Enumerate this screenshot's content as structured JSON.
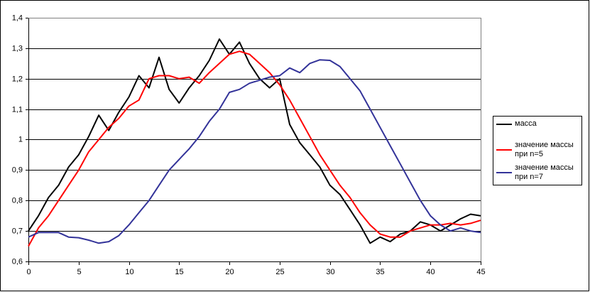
{
  "chart_data": {
    "type": "line",
    "x": [
      0,
      1,
      2,
      3,
      4,
      5,
      6,
      7,
      8,
      9,
      10,
      11,
      12,
      13,
      14,
      15,
      16,
      17,
      18,
      19,
      20,
      21,
      22,
      23,
      24,
      25,
      26,
      27,
      28,
      29,
      30,
      31,
      32,
      33,
      34,
      35,
      36,
      37,
      38,
      39,
      40,
      41,
      42,
      43,
      44,
      45
    ],
    "xlim": [
      0,
      45
    ],
    "xticks": [
      0,
      5,
      10,
      15,
      20,
      25,
      30,
      35,
      40,
      45
    ],
    "ylim": [
      0.6,
      1.4
    ],
    "yticks": [
      {
        "value": 0.6,
        "label": "0,6"
      },
      {
        "value": 0.7,
        "label": "0,7"
      },
      {
        "value": 0.8,
        "label": "0,8"
      },
      {
        "value": 0.9,
        "label": "0,9"
      },
      1,
      {
        "value": 1.1,
        "label": "1,1"
      },
      {
        "value": 1.2,
        "label": "1,2"
      },
      {
        "value": 1.3,
        "label": "1,3"
      },
      {
        "value": 1.4,
        "label": "1,4"
      }
    ],
    "grid": true,
    "series": [
      {
        "name": "масса",
        "color": "#000000",
        "values": [
          0.7,
          0.75,
          0.81,
          0.85,
          0.91,
          0.95,
          1.01,
          1.08,
          1.03,
          1.09,
          1.14,
          1.21,
          1.17,
          1.27,
          1.165,
          1.12,
          1.17,
          1.21,
          1.26,
          1.33,
          1.28,
          1.32,
          1.25,
          1.2,
          1.17,
          1.2,
          1.05,
          0.99,
          0.95,
          0.91,
          0.85,
          0.82,
          0.77,
          0.72,
          0.66,
          0.68,
          0.665,
          0.69,
          0.7,
          0.73,
          0.72,
          0.7,
          0.72,
          0.74,
          0.755,
          0.75
        ]
      },
      {
        "name": "значение массы при n=5",
        "color": "#ff0000",
        "values": [
          0.65,
          0.71,
          0.75,
          0.8,
          0.85,
          0.9,
          0.96,
          1.0,
          1.04,
          1.07,
          1.11,
          1.13,
          1.2,
          1.21,
          1.21,
          1.2,
          1.205,
          1.185,
          1.22,
          1.25,
          1.28,
          1.29,
          1.28,
          1.25,
          1.22,
          1.18,
          1.13,
          1.07,
          1.01,
          0.95,
          0.9,
          0.85,
          0.81,
          0.76,
          0.72,
          0.69,
          0.68,
          0.68,
          0.7,
          0.71,
          0.72,
          0.72,
          0.725,
          0.72,
          0.725,
          0.735
        ]
      },
      {
        "name": "значение массы при n=7",
        "color": "#333399",
        "values": [
          0.68,
          0.695,
          0.695,
          0.695,
          0.68,
          0.678,
          0.67,
          0.66,
          0.665,
          0.685,
          0.72,
          0.76,
          0.8,
          0.85,
          0.9,
          0.935,
          0.97,
          1.01,
          1.06,
          1.1,
          1.155,
          1.165,
          1.185,
          1.195,
          1.205,
          1.21,
          1.235,
          1.22,
          1.25,
          1.262,
          1.26,
          1.24,
          1.2,
          1.16,
          1.1,
          1.04,
          0.98,
          0.92,
          0.86,
          0.8,
          0.75,
          0.72,
          0.7,
          0.71,
          0.7,
          0.695
        ]
      }
    ]
  }
}
